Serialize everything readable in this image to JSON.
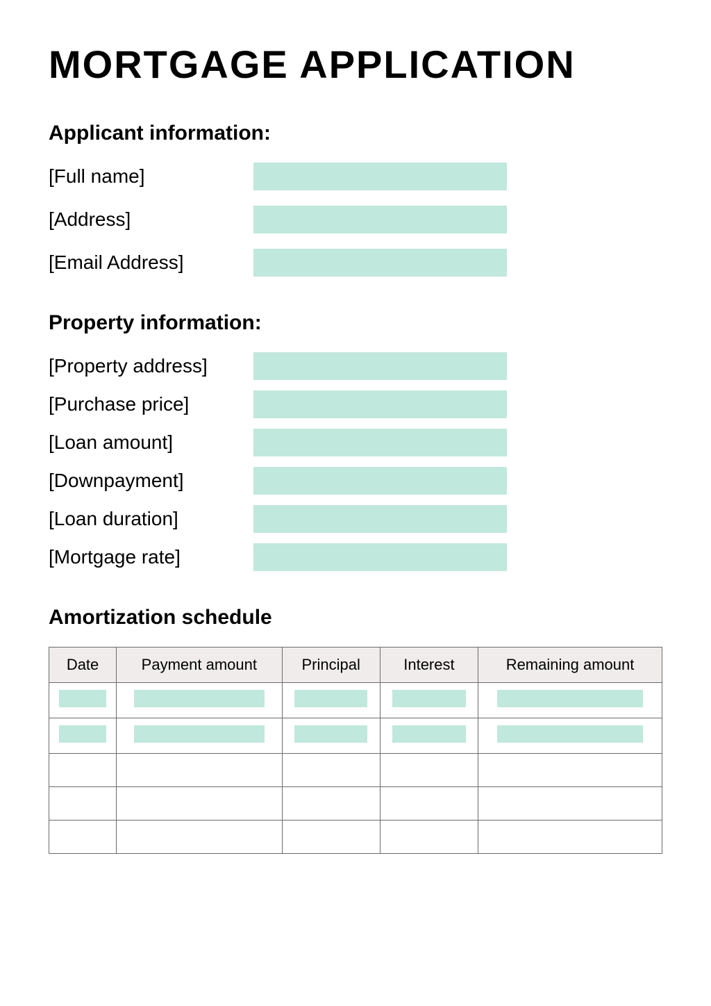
{
  "title": "MORTGAGE APPLICATION",
  "colors": {
    "field_fill": "#c0e8dc",
    "header_bg": "#efeceb",
    "table_border": "#6b6b6b",
    "background": "#ffffff",
    "text": "#000000"
  },
  "typography": {
    "title_fontsize": 56,
    "title_weight": 900,
    "heading_fontsize": 30,
    "heading_weight": 700,
    "label_fontsize": 28,
    "table_header_fontsize": 22
  },
  "sections": {
    "applicant": {
      "heading": "Applicant information:",
      "fields": [
        {
          "label": "[Full name]"
        },
        {
          "label": "[Address]"
        },
        {
          "label": "[Email Address]"
        }
      ]
    },
    "property": {
      "heading": "Property information:",
      "fields": [
        {
          "label": "[Property address]"
        },
        {
          "label": "[Purchase price]"
        },
        {
          "label": "[Loan amount]"
        },
        {
          "label": "[Downpayment]"
        },
        {
          "label": "[Loan duration]"
        },
        {
          "label": "[Mortgage rate]"
        }
      ]
    },
    "amortization": {
      "heading": "Amortization schedule",
      "columns": [
        "Date",
        "Payment amount",
        "Principal",
        "Interest",
        "Remaining amount"
      ],
      "rows": [
        {
          "filled": true
        },
        {
          "filled": true
        },
        {
          "filled": false
        },
        {
          "filled": false
        },
        {
          "filled": false
        }
      ]
    }
  }
}
